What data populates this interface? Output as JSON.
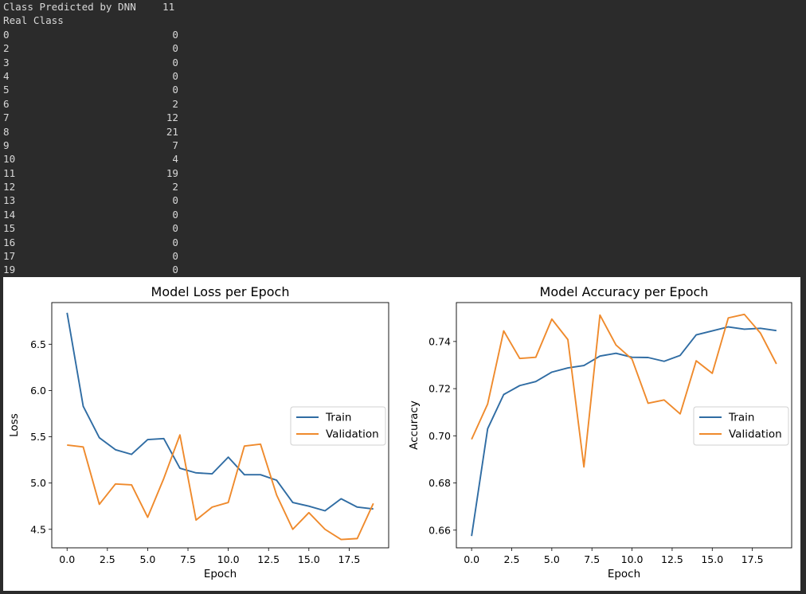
{
  "output": {
    "header_line": {
      "label": "Class Predicted by DNN",
      "value": "11"
    },
    "index_label": "Real Class",
    "rows": [
      {
        "k": "0",
        "v": "0"
      },
      {
        "k": "2",
        "v": "0"
      },
      {
        "k": "3",
        "v": "0"
      },
      {
        "k": "4",
        "v": "0"
      },
      {
        "k": "5",
        "v": "0"
      },
      {
        "k": "6",
        "v": "2"
      },
      {
        "k": "7",
        "v": "12"
      },
      {
        "k": "8",
        "v": "21"
      },
      {
        "k": "9",
        "v": "7"
      },
      {
        "k": "10",
        "v": "4"
      },
      {
        "k": "11",
        "v": "19"
      },
      {
        "k": "12",
        "v": "2"
      },
      {
        "k": "13",
        "v": "0"
      },
      {
        "k": "14",
        "v": "0"
      },
      {
        "k": "15",
        "v": "0"
      },
      {
        "k": "16",
        "v": "0"
      },
      {
        "k": "17",
        "v": "0"
      },
      {
        "k": "19",
        "v": "0"
      }
    ]
  },
  "colors": {
    "train": "#2f6ca3",
    "validation": "#ef8a2c"
  },
  "chart_data": [
    {
      "type": "line",
      "title": "Model Loss per Epoch",
      "xlabel": "Epoch",
      "ylabel": "Loss",
      "x": [
        0,
        1,
        2,
        3,
        4,
        5,
        6,
        7,
        8,
        9,
        10,
        11,
        12,
        13,
        14,
        15,
        16,
        17,
        18,
        19
      ],
      "xticks": [
        "0.0",
        "2.5",
        "5.0",
        "7.5",
        "10.0",
        "12.5",
        "15.0",
        "17.5"
      ],
      "xtick_values": [
        0,
        2.5,
        5,
        7.5,
        10,
        12.5,
        15,
        17.5
      ],
      "yticks": [
        "4.5",
        "5.0",
        "5.5",
        "6.0",
        "6.5"
      ],
      "ytick_values": [
        4.5,
        5.0,
        5.5,
        6.0,
        6.5
      ],
      "xlim": [
        -0.95,
        19.95
      ],
      "ylim": [
        4.3,
        6.95
      ],
      "legend": "center-right",
      "series": [
        {
          "name": "Train",
          "values": [
            6.84,
            5.83,
            5.49,
            5.36,
            5.31,
            5.47,
            5.48,
            5.16,
            5.11,
            5.1,
            5.28,
            5.09,
            5.09,
            5.03,
            4.79,
            4.75,
            4.7,
            4.83,
            4.74,
            4.72
          ]
        },
        {
          "name": "Validation",
          "values": [
            5.41,
            5.39,
            4.77,
            4.99,
            4.98,
            4.63,
            5.05,
            5.52,
            4.6,
            4.74,
            4.79,
            5.4,
            5.42,
            4.87,
            4.5,
            4.68,
            4.5,
            4.39,
            4.4,
            4.78
          ]
        }
      ]
    },
    {
      "type": "line",
      "title": "Model Accuracy per Epoch",
      "xlabel": "Epoch",
      "ylabel": "Accuracy",
      "x": [
        0,
        1,
        2,
        3,
        4,
        5,
        6,
        7,
        8,
        9,
        10,
        11,
        12,
        13,
        14,
        15,
        16,
        17,
        18,
        19
      ],
      "xticks": [
        "0.0",
        "2.5",
        "5.0",
        "7.5",
        "10.0",
        "12.5",
        "15.0",
        "17.5"
      ],
      "xtick_values": [
        0,
        2.5,
        5,
        7.5,
        10,
        12.5,
        15,
        17.5
      ],
      "yticks": [
        "0.66",
        "0.68",
        "0.70",
        "0.72",
        "0.74"
      ],
      "ytick_values": [
        0.66,
        0.68,
        0.7,
        0.72,
        0.74
      ],
      "xlim": [
        -0.95,
        19.95
      ],
      "ylim": [
        0.6525,
        0.7565
      ],
      "legend": "center-right",
      "series": [
        {
          "name": "Train",
          "values": [
            0.6575,
            0.703,
            0.7175,
            0.7213,
            0.723,
            0.727,
            0.7288,
            0.7298,
            0.7338,
            0.735,
            0.7333,
            0.7332,
            0.7316,
            0.7341,
            0.7428,
            0.7445,
            0.7462,
            0.7452,
            0.7456,
            0.7446
          ]
        },
        {
          "name": "Validation",
          "values": [
            0.6985,
            0.7135,
            0.7445,
            0.7328,
            0.7333,
            0.7495,
            0.7408,
            0.6868,
            0.7512,
            0.7385,
            0.7325,
            0.7138,
            0.7152,
            0.7093,
            0.7318,
            0.7265,
            0.75,
            0.7515,
            0.7436,
            0.7305
          ]
        }
      ]
    }
  ]
}
